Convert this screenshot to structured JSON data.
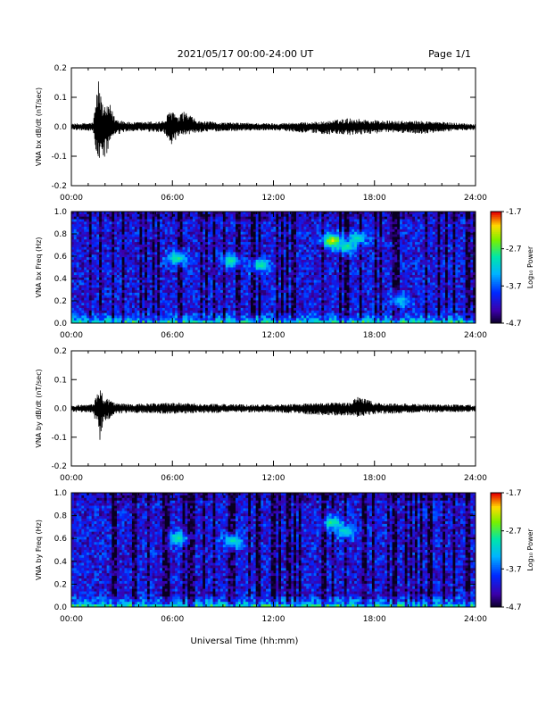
{
  "header": {
    "title": "2021/05/17  00:00-24:00 UT",
    "page": "Page 1/1"
  },
  "chart_data": [
    {
      "type": "line",
      "ylabel": "VNA bx dB/dt (nT/sec)",
      "xlabel": "",
      "xlim": [
        0,
        24
      ],
      "ylim": [
        -0.2,
        0.2
      ],
      "x_ticks": [
        "00:00",
        "06:00",
        "12:00",
        "18:00",
        "24:00"
      ],
      "y_ticks": [
        "0.2",
        "0.1",
        "0.0",
        "-0.1",
        "-0.2"
      ],
      "color": "#000000",
      "envelope": {
        "x": [
          0,
          1.3,
          1.6,
          1.8,
          2.0,
          2.3,
          2.6,
          3.5,
          5.5,
          5.8,
          6.0,
          6.3,
          6.7,
          7.5,
          9,
          12,
          15,
          16.5,
          17.5,
          19,
          21,
          22.5,
          24
        ],
        "max": [
          0.01,
          0.015,
          0.17,
          0.09,
          0.065,
          0.075,
          0.03,
          0.015,
          0.02,
          0.05,
          0.065,
          0.03,
          0.055,
          0.02,
          0.015,
          0.012,
          0.018,
          0.03,
          0.025,
          0.02,
          0.02,
          0.015,
          0.01
        ],
        "min": [
          -0.01,
          -0.015,
          -0.14,
          -0.085,
          -0.12,
          -0.05,
          -0.03,
          -0.015,
          -0.02,
          -0.05,
          -0.07,
          -0.04,
          -0.03,
          -0.02,
          -0.015,
          -0.012,
          -0.025,
          -0.03,
          -0.025,
          -0.02,
          -0.025,
          -0.015,
          -0.01
        ]
      }
    },
    {
      "type": "heatmap",
      "ylabel": "VNA bx Freq (Hz)",
      "xlabel": "",
      "xlim": [
        0,
        24
      ],
      "ylim": [
        0.0,
        1.0
      ],
      "x_ticks": [
        "00:00",
        "06:00",
        "12:00",
        "18:00",
        "24:00"
      ],
      "y_ticks": [
        "1.0",
        "0.8",
        "0.6",
        "0.4",
        "0.2",
        "0.0"
      ],
      "colorbar": {
        "label": "Log₁₀ Power",
        "ticks": [
          "-1.7",
          "-2.7",
          "-3.7",
          "-4.7"
        ],
        "range": [
          -4.7,
          -1.7
        ]
      },
      "features": [
        {
          "x": 6.3,
          "y": 0.58,
          "level": -2.8
        },
        {
          "x": 9.5,
          "y": 0.56,
          "level": -2.9
        },
        {
          "x": 11.2,
          "y": 0.52,
          "level": -2.9
        },
        {
          "x": 15.5,
          "y": 0.74,
          "level": -2.2
        },
        {
          "x": 16.3,
          "y": 0.68,
          "level": -2.8
        },
        {
          "x": 17.0,
          "y": 0.76,
          "level": -2.9
        },
        {
          "x": 19.5,
          "y": 0.2,
          "level": -3.2
        }
      ]
    },
    {
      "type": "line",
      "ylabel": "VNA by dB/dt (nT/sec)",
      "xlabel": "",
      "xlim": [
        0,
        24
      ],
      "ylim": [
        -0.2,
        0.2
      ],
      "x_ticks": [
        "00:00",
        "06:00",
        "12:00",
        "18:00",
        "24:00"
      ],
      "y_ticks": [
        "0.2",
        "0.1",
        "0.0",
        "-0.1",
        "-0.2"
      ],
      "color": "#000000",
      "envelope": {
        "x": [
          0,
          1.3,
          1.7,
          1.9,
          2.2,
          2.6,
          3.5,
          6,
          9,
          12,
          15,
          16.5,
          17.0,
          18,
          21,
          24
        ],
        "max": [
          0.012,
          0.015,
          0.075,
          0.045,
          0.035,
          0.02,
          0.015,
          0.02,
          0.015,
          0.013,
          0.02,
          0.02,
          0.05,
          0.02,
          0.015,
          0.012
        ],
        "min": [
          -0.012,
          -0.015,
          -0.11,
          -0.05,
          -0.04,
          -0.02,
          -0.015,
          -0.02,
          -0.015,
          -0.013,
          -0.025,
          -0.025,
          -0.03,
          -0.02,
          -0.015,
          -0.012
        ]
      }
    },
    {
      "type": "heatmap",
      "ylabel": "VNA by Freq (Hz)",
      "xlabel": "Universal Time (hh:mm)",
      "xlim": [
        0,
        24
      ],
      "ylim": [
        0.0,
        1.0
      ],
      "x_ticks": [
        "00:00",
        "06:00",
        "12:00",
        "18:00",
        "24:00"
      ],
      "y_ticks": [
        "1.0",
        "0.8",
        "0.6",
        "0.4",
        "0.2",
        "0.0"
      ],
      "colorbar": {
        "label": "Log₁₀ Power",
        "ticks": [
          "-1.7",
          "-2.7",
          "-3.7",
          "-4.7"
        ],
        "range": [
          -4.7,
          -1.7
        ]
      },
      "features": [
        {
          "x": 6.3,
          "y": 0.6,
          "level": -2.9
        },
        {
          "x": 9.6,
          "y": 0.58,
          "level": -3.0
        },
        {
          "x": 15.5,
          "y": 0.74,
          "level": -2.8
        },
        {
          "x": 16.3,
          "y": 0.66,
          "level": -3.0
        }
      ]
    }
  ]
}
